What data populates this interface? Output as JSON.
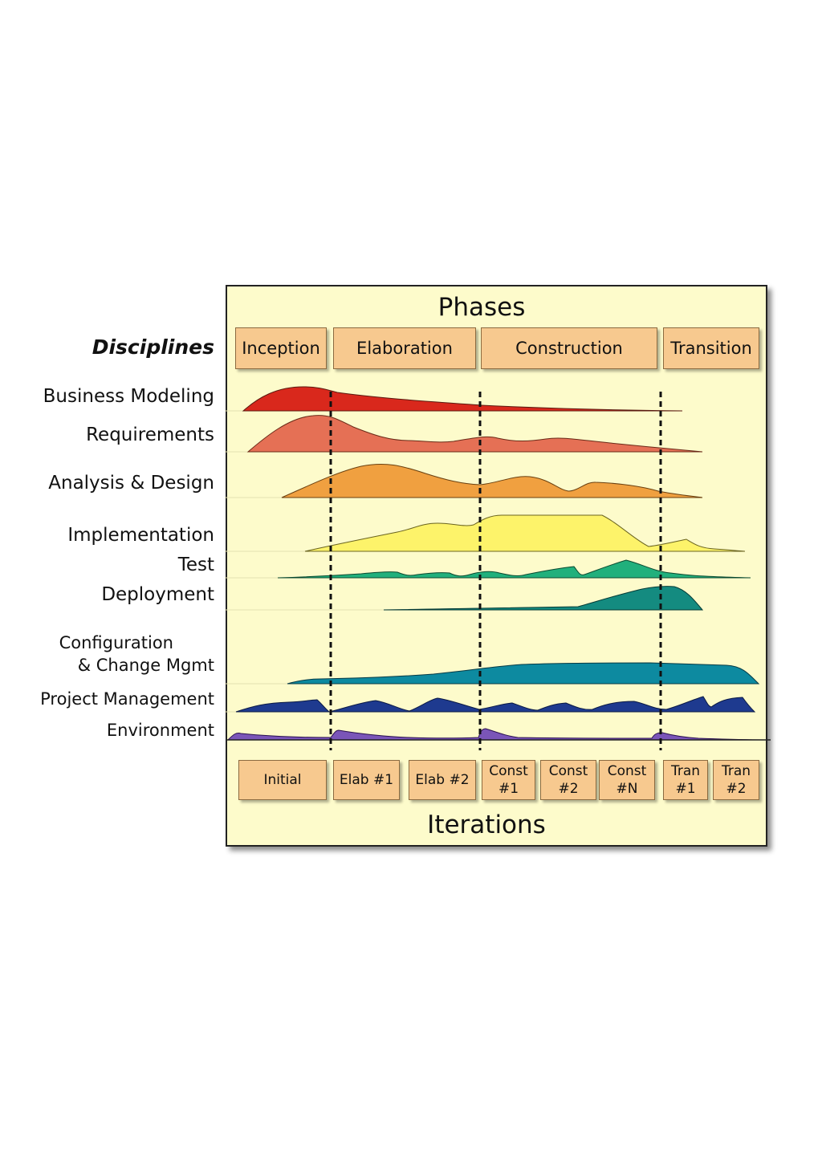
{
  "phases_title": "Phases",
  "iterations_title": "Iterations",
  "disciplines_heading": "Disciplines",
  "phases": [
    "Inception",
    "Elaboration",
    "Construction",
    "Transition"
  ],
  "iterations": [
    "Initial",
    "Elab #1",
    "Elab #2",
    "Const\n#1",
    "Const\n#2",
    "Const\n#N",
    "Tran\n#1",
    "Tran\n#2"
  ],
  "disciplines": {
    "business_modeling": "Business Modeling",
    "requirements": "Requirements",
    "analysis_design": "Analysis & Design",
    "implementation": "Implementation",
    "test": "Test",
    "deployment": "Deployment",
    "configuration_line1": "Configuration",
    "configuration_line2": "& Change Mgmt",
    "project_management": "Project Management",
    "environment": "Environment"
  },
  "colors": {
    "panel_background": "#fdfbcb",
    "box_fill": "#f7c98f",
    "business_modeling": "#d9281c",
    "requirements": "#e57055",
    "analysis_design": "#f0a040",
    "implementation": "#fdf36a",
    "test": "#21b07c",
    "deployment": "#148b80",
    "configuration": "#0d8aa0",
    "project_management": "#1e3a8f",
    "environment": "#7a55b8"
  }
}
